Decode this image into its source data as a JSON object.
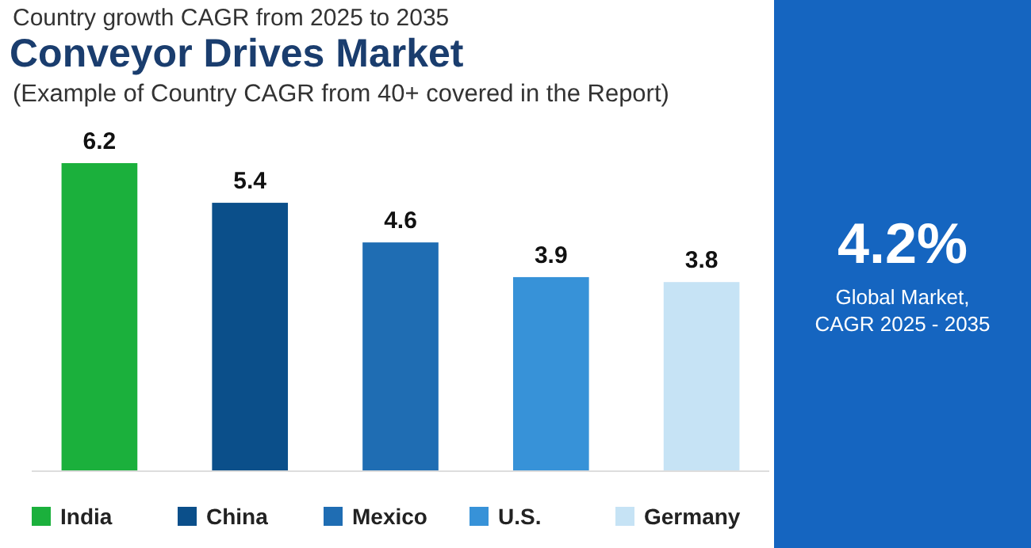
{
  "chart_data": [
    {
      "type": "bar",
      "title": "Conveyor Drives Market",
      "subtitle": "(Example of Country CAGR from 40+ covered in the Report)",
      "annotations": [
        "Country growth CAGR from 2025 to 2035"
      ],
      "categories": [
        null,
        null,
        null,
        null,
        null
      ],
      "stacked": true,
      "series": [
        {
          "name": "India",
          "color": "#1bb03c",
          "values": [
            6.2,
            null,
            null,
            null,
            null
          ]
        },
        {
          "name": "China",
          "color": "#0b4f8a",
          "values": [
            null,
            5.4,
            null,
            null,
            null
          ]
        },
        {
          "name": "Mexico",
          "color": "#1f6db3",
          "values": [
            null,
            null,
            4.6,
            null,
            null
          ]
        },
        {
          "name": "U.S.",
          "color": "#3792d8",
          "values": [
            null,
            null,
            null,
            3.9,
            null
          ]
        },
        {
          "name": "Germany",
          "color": "#c6e3f5",
          "values": [
            null,
            null,
            null,
            null,
            3.8
          ]
        }
      ],
      "data_labels": true,
      "legend": "bottom"
    },
    {
      "type": "other",
      "title": "4.2%",
      "subtitle": "Global Market, CAGR 2025 - 2035"
    }
  ]
}
